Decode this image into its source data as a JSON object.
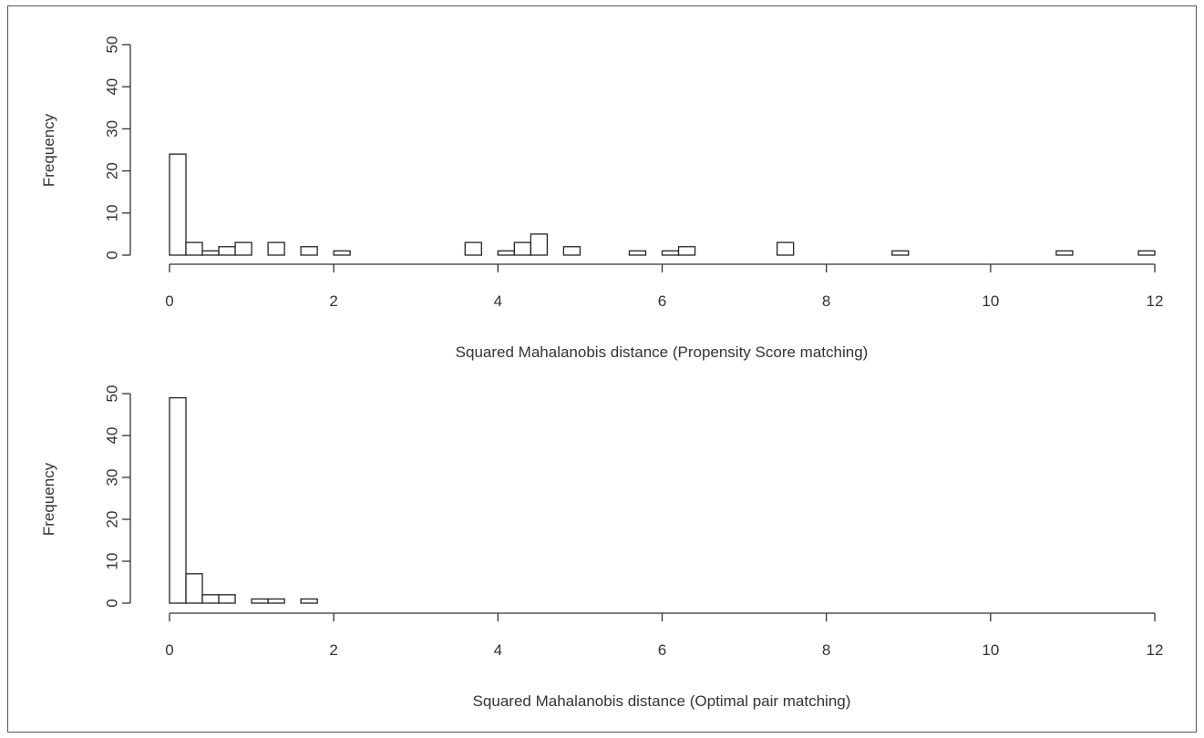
{
  "chart_data": [
    {
      "type": "bar",
      "title": "",
      "xlabel": "Squared Mahalanobis distance (Propensity Score matching)",
      "ylabel": "Frequency",
      "xlim": [
        0,
        12
      ],
      "ylim": [
        0,
        50
      ],
      "xticks": [
        0,
        2,
        4,
        6,
        8,
        10,
        12
      ],
      "yticks": [
        0,
        10,
        20,
        30,
        40,
        50
      ],
      "grid": false,
      "bin_width": 0.2,
      "bins": [
        {
          "x0": 0.0,
          "x1": 0.2,
          "count": 24
        },
        {
          "x0": 0.2,
          "x1": 0.4,
          "count": 3
        },
        {
          "x0": 0.4,
          "x1": 0.6,
          "count": 1
        },
        {
          "x0": 0.6,
          "x1": 0.8,
          "count": 2
        },
        {
          "x0": 0.8,
          "x1": 1.0,
          "count": 3
        },
        {
          "x0": 1.2,
          "x1": 1.4,
          "count": 3
        },
        {
          "x0": 1.6,
          "x1": 1.8,
          "count": 2
        },
        {
          "x0": 2.0,
          "x1": 2.2,
          "count": 1
        },
        {
          "x0": 3.6,
          "x1": 3.8,
          "count": 3
        },
        {
          "x0": 4.0,
          "x1": 4.2,
          "count": 1
        },
        {
          "x0": 4.2,
          "x1": 4.4,
          "count": 3
        },
        {
          "x0": 4.4,
          "x1": 4.6,
          "count": 5
        },
        {
          "x0": 4.8,
          "x1": 5.0,
          "count": 2
        },
        {
          "x0": 5.6,
          "x1": 5.8,
          "count": 1
        },
        {
          "x0": 6.0,
          "x1": 6.2,
          "count": 1
        },
        {
          "x0": 6.2,
          "x1": 6.4,
          "count": 2
        },
        {
          "x0": 7.4,
          "x1": 7.6,
          "count": 3
        },
        {
          "x0": 8.8,
          "x1": 9.0,
          "count": 1
        },
        {
          "x0": 10.8,
          "x1": 11.0,
          "count": 1
        },
        {
          "x0": 11.8,
          "x1": 12.0,
          "count": 1
        }
      ]
    },
    {
      "type": "bar",
      "title": "",
      "xlabel": "Squared Mahalanobis distance (Optimal pair matching)",
      "ylabel": "Frequency",
      "xlim": [
        0,
        12
      ],
      "ylim": [
        0,
        50
      ],
      "xticks": [
        0,
        2,
        4,
        6,
        8,
        10,
        12
      ],
      "yticks": [
        0,
        10,
        20,
        30,
        40,
        50
      ],
      "grid": false,
      "bin_width": 0.2,
      "bins": [
        {
          "x0": 0.0,
          "x1": 0.2,
          "count": 49
        },
        {
          "x0": 0.2,
          "x1": 0.4,
          "count": 7
        },
        {
          "x0": 0.4,
          "x1": 0.6,
          "count": 2
        },
        {
          "x0": 0.6,
          "x1": 0.8,
          "count": 2
        },
        {
          "x0": 1.0,
          "x1": 1.2,
          "count": 1
        },
        {
          "x0": 1.2,
          "x1": 1.4,
          "count": 1
        },
        {
          "x0": 1.6,
          "x1": 1.8,
          "count": 1
        }
      ]
    }
  ]
}
